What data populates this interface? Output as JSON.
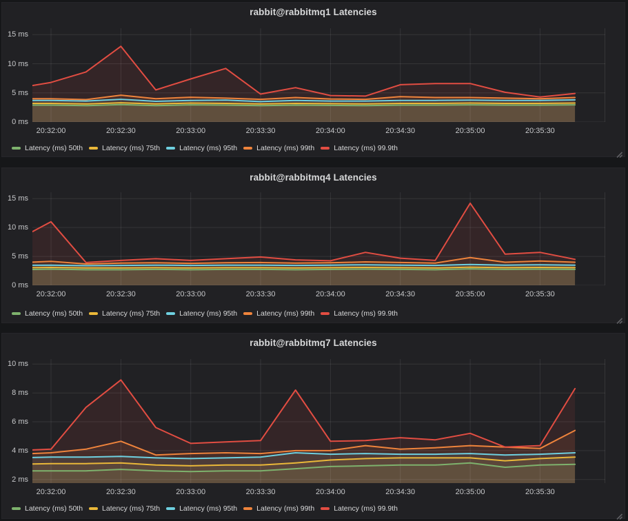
{
  "colors": {
    "page_background": "#161719",
    "panel_background": "#212124",
    "grid_line": "rgba(255,255,255,0.09)",
    "title_text": "#d8d9da",
    "axis_text": "#c7c8ca",
    "legend_text": "#d8d9da",
    "resize_handle": "#606064",
    "series_50th": "#7EB26D",
    "series_75th": "#EAB839",
    "series_95th": "#6ED0E0",
    "series_99th": "#EF843C",
    "series_999th": "#E24D42"
  },
  "axis": {
    "x_tick_labels": [
      "20:32:00",
      "20:32:30",
      "20:33:00",
      "20:33:30",
      "20:34:00",
      "20:34:30",
      "20:35:00",
      "20:35:30"
    ],
    "x_tick_seconds": [
      15,
      45,
      75,
      105,
      135,
      165,
      195,
      225
    ],
    "x_range_seconds": [
      7,
      253
    ]
  },
  "chart_data": [
    {
      "type": "area",
      "title": "rabbit@rabbitmq1 Latencies",
      "legend_position": "bottom-left",
      "grid": true,
      "x_labels": [
        "20:31:45",
        "20:32:00",
        "20:32:15",
        "20:32:30",
        "20:32:45",
        "20:33:00",
        "20:33:15",
        "20:33:30",
        "20:33:45",
        "20:34:00",
        "20:34:15",
        "20:34:30",
        "20:34:45",
        "20:35:00",
        "20:35:15",
        "20:35:30",
        "20:35:45"
      ],
      "x_seconds": [
        0,
        15,
        30,
        45,
        60,
        75,
        90,
        105,
        120,
        135,
        150,
        165,
        180,
        195,
        210,
        225,
        240
      ],
      "ylim": [
        0,
        16.1
      ],
      "y_gridline_values": [
        0,
        5,
        10,
        15
      ],
      "y_tick_labels": [
        "0 ms",
        "5 ms",
        "10 ms",
        "15 ms"
      ],
      "series": [
        {
          "name": "Latency (ms) 50th",
          "color": "#7EB26D",
          "values": [
            2.9,
            2.9,
            2.8,
            3.0,
            2.8,
            2.95,
            2.9,
            2.8,
            2.9,
            2.85,
            2.8,
            2.9,
            2.9,
            2.95,
            2.9,
            2.9,
            2.95
          ]
        },
        {
          "name": "Latency (ms) 75th",
          "color": "#EAB839",
          "values": [
            3.2,
            3.2,
            3.1,
            3.3,
            3.1,
            3.25,
            3.2,
            3.1,
            3.2,
            3.15,
            3.1,
            3.2,
            3.2,
            3.25,
            3.2,
            3.2,
            3.25
          ]
        },
        {
          "name": "Latency (ms) 95th",
          "color": "#6ED0E0",
          "values": [
            3.7,
            3.7,
            3.6,
            3.9,
            3.55,
            3.7,
            3.75,
            3.5,
            3.7,
            3.6,
            3.6,
            3.7,
            3.7,
            3.75,
            3.7,
            3.7,
            3.8
          ]
        },
        {
          "name": "Latency (ms) 99th",
          "color": "#EF843C",
          "values": [
            4.0,
            4.0,
            3.85,
            4.6,
            4.0,
            4.25,
            4.1,
            3.9,
            4.2,
            3.95,
            3.9,
            4.35,
            4.2,
            4.2,
            4.1,
            4.0,
            4.2
          ]
        },
        {
          "name": "Latency (ms) 99.9th",
          "color": "#E24D42",
          "values": [
            5.8,
            6.8,
            8.6,
            13.0,
            5.5,
            7.4,
            9.2,
            4.8,
            5.9,
            4.55,
            4.45,
            6.4,
            6.6,
            6.6,
            5.1,
            4.3,
            4.9
          ]
        }
      ]
    },
    {
      "type": "area",
      "title": "rabbit@rabbitmq4 Latencies",
      "legend_position": "bottom-left",
      "grid": true,
      "x_labels": [
        "20:31:45",
        "20:32:00",
        "20:32:15",
        "20:32:30",
        "20:32:45",
        "20:33:00",
        "20:33:15",
        "20:33:30",
        "20:33:45",
        "20:34:00",
        "20:34:15",
        "20:34:30",
        "20:34:45",
        "20:35:00",
        "20:35:15",
        "20:35:30",
        "20:35:45"
      ],
      "x_seconds": [
        0,
        15,
        30,
        45,
        60,
        75,
        90,
        105,
        120,
        135,
        150,
        165,
        180,
        195,
        210,
        225,
        240
      ],
      "ylim": [
        0,
        16.1
      ],
      "y_gridline_values": [
        0,
        5,
        10,
        15
      ],
      "y_tick_labels": [
        "0 ms",
        "5 ms",
        "10 ms",
        "15 ms"
      ],
      "series": [
        {
          "name": "Latency (ms) 50th",
          "color": "#7EB26D",
          "values": [
            2.7,
            2.8,
            2.7,
            2.7,
            2.75,
            2.7,
            2.75,
            2.75,
            2.7,
            2.75,
            2.8,
            2.75,
            2.7,
            2.85,
            2.75,
            2.8,
            2.75
          ]
        },
        {
          "name": "Latency (ms) 75th",
          "color": "#EAB839",
          "values": [
            3.0,
            3.1,
            3.0,
            3.0,
            3.05,
            3.0,
            3.05,
            3.05,
            3.0,
            3.05,
            3.1,
            3.05,
            3.0,
            3.15,
            3.05,
            3.1,
            3.05
          ]
        },
        {
          "name": "Latency (ms) 95th",
          "color": "#6ED0E0",
          "values": [
            3.45,
            3.5,
            3.4,
            3.45,
            3.5,
            3.45,
            3.5,
            3.5,
            3.45,
            3.5,
            3.55,
            3.5,
            3.45,
            3.6,
            3.5,
            3.55,
            3.5
          ]
        },
        {
          "name": "Latency (ms) 99th",
          "color": "#EF843C",
          "values": [
            3.9,
            4.15,
            3.7,
            3.85,
            3.9,
            3.8,
            3.9,
            3.95,
            3.85,
            3.9,
            4.05,
            3.95,
            3.85,
            4.8,
            4.0,
            4.2,
            4.0
          ]
        },
        {
          "name": "Latency (ms) 99.9th",
          "color": "#E24D42",
          "values": [
            7.8,
            11.0,
            3.95,
            4.3,
            4.6,
            4.3,
            4.6,
            4.9,
            4.4,
            4.25,
            5.7,
            4.7,
            4.3,
            14.2,
            5.4,
            5.7,
            4.5
          ]
        }
      ]
    },
    {
      "type": "area",
      "title": "rabbit@rabbitmq7 Latencies",
      "legend_position": "bottom-left",
      "grid": true,
      "x_labels": [
        "20:31:45",
        "20:32:00",
        "20:32:15",
        "20:32:30",
        "20:32:45",
        "20:33:00",
        "20:33:15",
        "20:33:30",
        "20:33:45",
        "20:34:00",
        "20:34:15",
        "20:34:30",
        "20:34:45",
        "20:35:00",
        "20:35:15",
        "20:35:30",
        "20:35:45"
      ],
      "x_seconds": [
        0,
        15,
        30,
        45,
        60,
        75,
        90,
        105,
        120,
        135,
        150,
        165,
        180,
        195,
        210,
        225,
        240
      ],
      "ylim": [
        1.75,
        10.35
      ],
      "y_gridline_values": [
        2,
        4,
        6,
        8,
        10
      ],
      "y_tick_labels": [
        "2 ms",
        "4 ms",
        "6 ms",
        "8 ms",
        "10 ms"
      ],
      "series": [
        {
          "name": "Latency (ms) 50th",
          "color": "#7EB26D",
          "values": [
            2.6,
            2.6,
            2.6,
            2.7,
            2.6,
            2.55,
            2.6,
            2.6,
            2.75,
            2.9,
            2.95,
            3.0,
            3.0,
            3.15,
            2.85,
            3.0,
            3.05
          ]
        },
        {
          "name": "Latency (ms) 75th",
          "color": "#EAB839",
          "values": [
            3.05,
            3.1,
            3.1,
            3.15,
            3.0,
            2.95,
            3.0,
            3.0,
            3.15,
            3.35,
            3.45,
            3.5,
            3.5,
            3.5,
            3.3,
            3.45,
            3.55
          ]
        },
        {
          "name": "Latency (ms) 95th",
          "color": "#6ED0E0",
          "values": [
            3.5,
            3.55,
            3.55,
            3.6,
            3.5,
            3.45,
            3.5,
            3.55,
            3.85,
            3.75,
            3.8,
            3.75,
            3.75,
            3.8,
            3.7,
            3.75,
            3.85
          ]
        },
        {
          "name": "Latency (ms) 99th",
          "color": "#EF843C",
          "values": [
            3.75,
            3.85,
            4.1,
            4.65,
            3.7,
            3.8,
            3.85,
            3.8,
            4.0,
            4.0,
            4.35,
            4.1,
            4.2,
            4.35,
            4.25,
            4.15,
            5.4
          ]
        },
        {
          "name": "Latency (ms) 99.9th",
          "color": "#E24D42",
          "values": [
            4.0,
            4.1,
            7.0,
            8.9,
            5.6,
            4.5,
            4.6,
            4.7,
            8.2,
            4.65,
            4.7,
            4.9,
            4.75,
            5.2,
            4.25,
            4.35,
            8.3
          ]
        }
      ]
    }
  ]
}
